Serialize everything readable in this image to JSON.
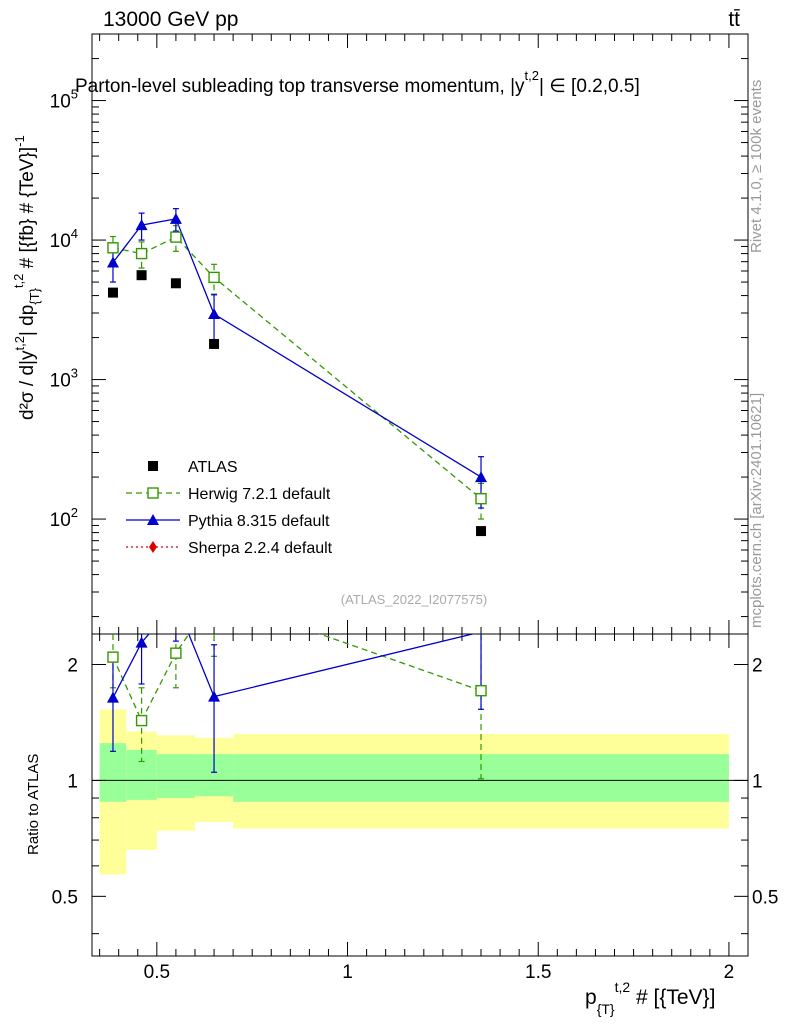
{
  "header": {
    "energy_label": "13000 GeV pp",
    "process_label": "tt̄"
  },
  "side_labels": {
    "rivet": "Rivet 4.1.0, ≥ 100k events",
    "mcplots": "mcplots.cern.ch [arXiv:2401.10621]"
  },
  "chart_data": {
    "type": "scatter",
    "title": "Parton-level subleading top transverse momentum, |y^{t,2}| ∈ [0.2,0.5]",
    "title_text": "Parton-level subleading top transverse momentum, |y",
    "title_sup": "t,2",
    "title_tail": "| ∈ [0.2,0.5]",
    "ylabel": "d²σ / d|y^{t,2}| dp_{T}^{t,2} # [{fb} # {TeV}]⁻¹",
    "ylabel_text": "d²σ / d|y",
    "ylabel_mid": "| dp",
    "ylabel_tail": " # [{fb} # {TeV}]",
    "ratio_ylabel": "Ratio to ATLAS",
    "xlabel": "p_{T}^{t,2} # [{TeV}]",
    "xlabel_text": "p",
    "xlabel_sub": "{T}",
    "xlabel_sup": "t,2",
    "xlabel_tail": " # [{TeV}]",
    "reference": "(ATLAS_2022_I2077575)",
    "xlim": [
      0.33,
      2.05
    ],
    "ylim_main": [
      15,
      300000
    ],
    "yscale_main": "log",
    "ylim_ratio": [
      0.35,
      2.4
    ],
    "yscale_ratio": "log",
    "x_ticks": [
      {
        "value": 0.5,
        "label": "0.5"
      },
      {
        "value": 1.0,
        "label": "1"
      },
      {
        "value": 1.5,
        "label": "1.5"
      },
      {
        "value": 2.0,
        "label": "2"
      }
    ],
    "y_ticks_main": [
      {
        "value": 100,
        "base": "10",
        "exp": "2"
      },
      {
        "value": 1000,
        "base": "10",
        "exp": "3"
      },
      {
        "value": 10000,
        "base": "10",
        "exp": "4"
      },
      {
        "value": 100000,
        "base": "10",
        "exp": "5"
      }
    ],
    "y_ticks_ratio": [
      {
        "value": 0.5,
        "label": "0.5"
      },
      {
        "value": 1,
        "label": "1"
      },
      {
        "value": 2,
        "label": "2"
      }
    ],
    "bins": [
      {
        "lo": 0.35,
        "hi": 0.42
      },
      {
        "lo": 0.42,
        "hi": 0.5
      },
      {
        "lo": 0.5,
        "hi": 0.6
      },
      {
        "lo": 0.6,
        "hi": 0.7
      },
      {
        "lo": 0.7,
        "hi": 2.0
      }
    ],
    "band_inner": [
      [
        0.88,
        1.25
      ],
      [
        0.89,
        1.2
      ],
      [
        0.9,
        1.17
      ],
      [
        0.91,
        1.17
      ],
      [
        0.88,
        1.17
      ]
    ],
    "band_outer": [
      [
        0.57,
        1.53
      ],
      [
        0.66,
        1.34
      ],
      [
        0.74,
        1.31
      ],
      [
        0.78,
        1.29
      ],
      [
        0.75,
        1.32
      ]
    ],
    "series": [
      {
        "name": "ATLAS",
        "color": "#000000",
        "marker": "square",
        "line": "none",
        "x": [
          0.385,
          0.46,
          0.55,
          0.65,
          1.35
        ],
        "y": [
          4200,
          5600,
          4900,
          1800,
          82
        ],
        "err": [
          0,
          0,
          0,
          0,
          0
        ],
        "ratio": [
          1,
          1,
          1,
          1,
          1
        ],
        "ratio_err": [
          0,
          0,
          0,
          0,
          0
        ]
      },
      {
        "name": "Herwig 7.2.1 default",
        "color": "#339900",
        "marker": "open-square",
        "line": "dashed",
        "x": [
          0.385,
          0.46,
          0.55,
          0.65,
          1.35
        ],
        "y": [
          8800,
          8000,
          10500,
          5400,
          140
        ],
        "err": [
          1800,
          1700,
          2200,
          1300,
          40
        ],
        "ratio": [
          2.09,
          1.43,
          2.14,
          3.0,
          1.71
        ],
        "ratio_err": [
          0.35,
          0.31,
          0.4,
          0.9,
          0.7
        ]
      },
      {
        "name": "Pythia 8.315 default",
        "color": "#0000cc",
        "marker": "triangle",
        "line": "solid",
        "x": [
          0.385,
          0.46,
          0.55,
          0.65,
          1.35
        ],
        "y": [
          6900,
          12800,
          14200,
          2950,
          200
        ],
        "err": [
          1900,
          2800,
          2600,
          1100,
          80
        ],
        "ratio": [
          1.64,
          2.28,
          2.9,
          1.65,
          2.43
        ],
        "ratio_err": [
          0.45,
          0.5,
          0.6,
          0.6,
          0.9
        ]
      },
      {
        "name": "Sherpa 2.2.4 default",
        "color": "#dd0000",
        "marker": "diamond",
        "line": "dotted",
        "x": [],
        "y": [],
        "err": [],
        "ratio": [],
        "ratio_err": []
      }
    ]
  }
}
